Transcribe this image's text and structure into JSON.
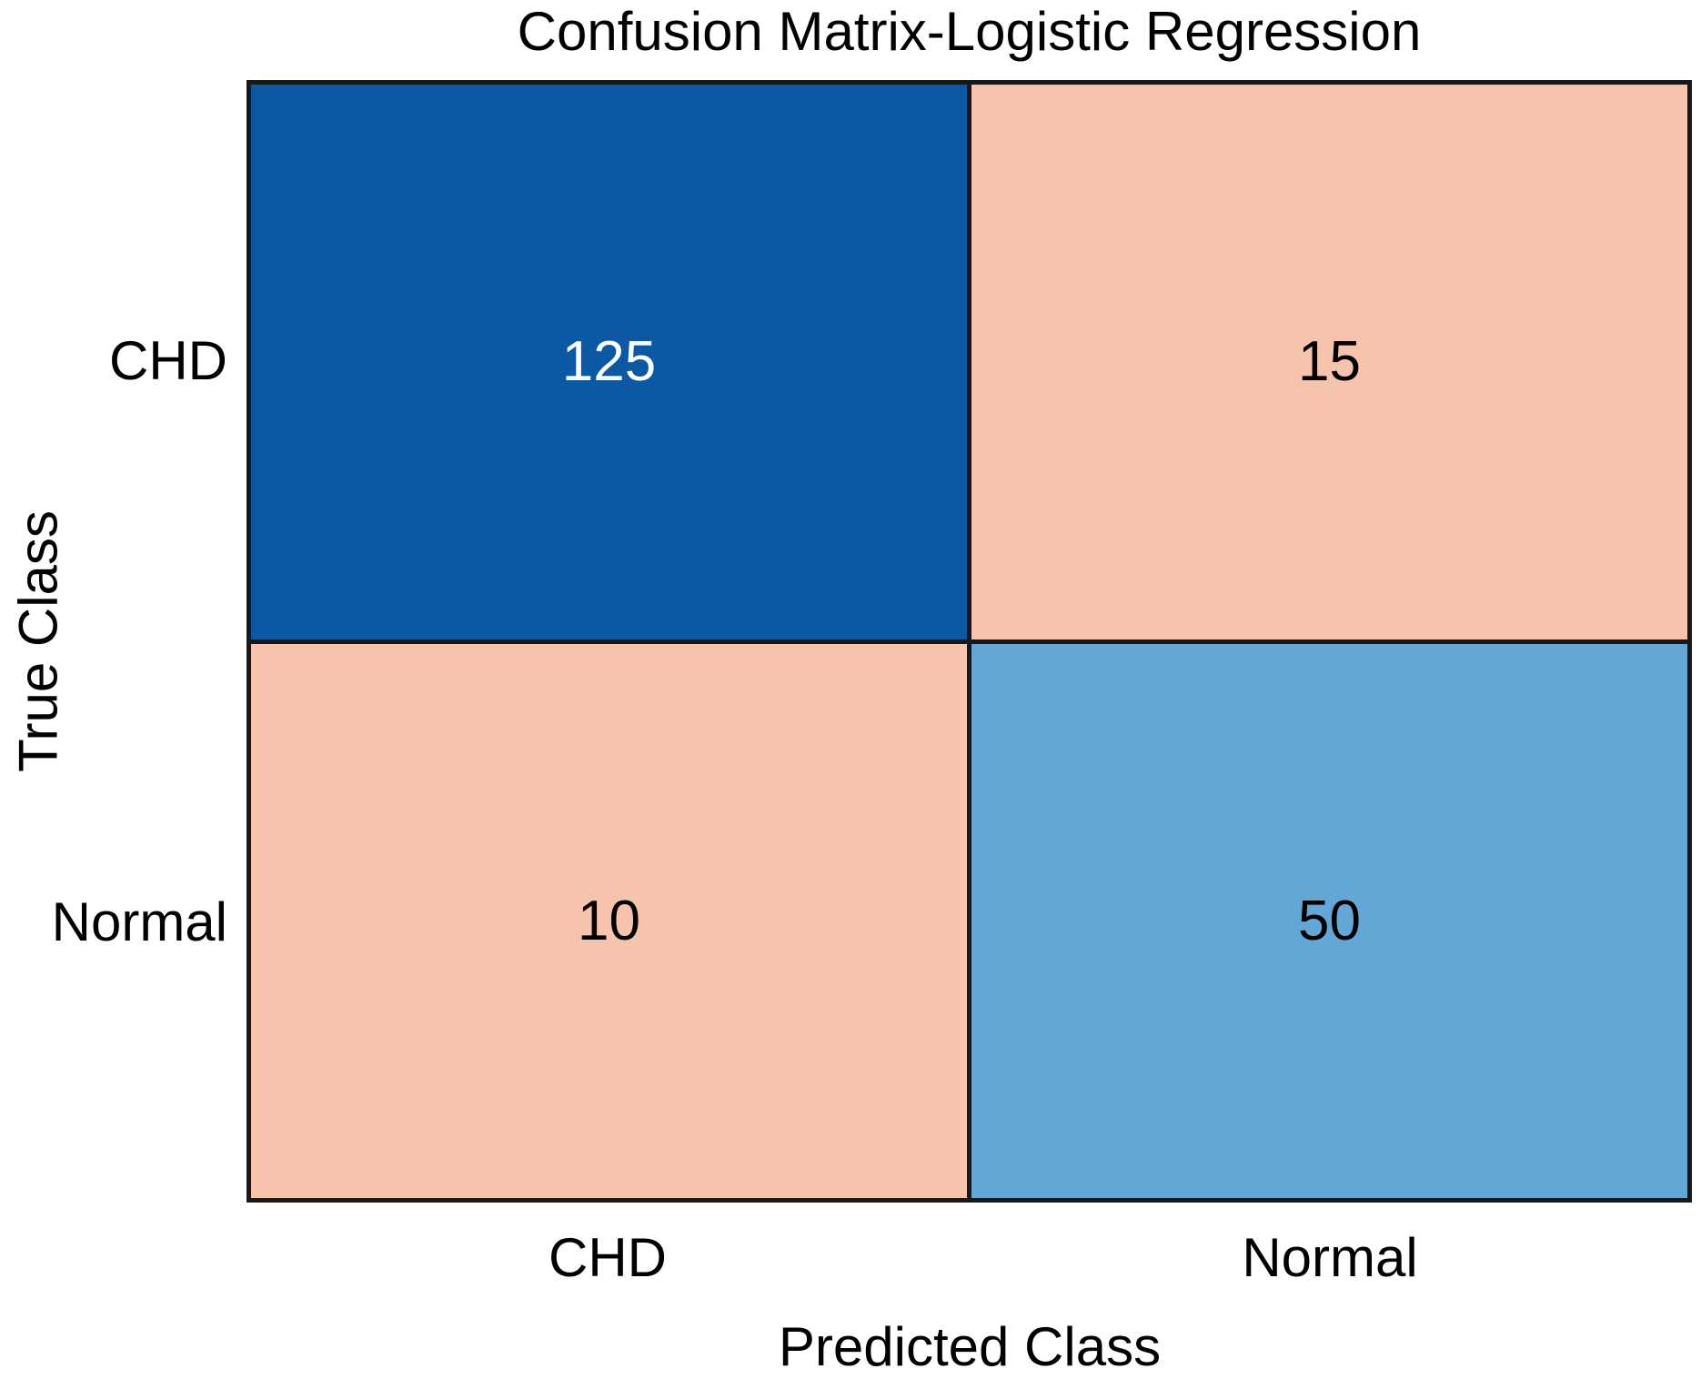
{
  "chart_data": {
    "type": "heatmap",
    "subtype": "confusion-matrix",
    "title": "Confusion Matrix-Logistic Regression",
    "xlabel": "Predicted Class",
    "ylabel": "True Class",
    "x_categories": [
      "CHD",
      "Normal"
    ],
    "y_categories": [
      "CHD",
      "Normal"
    ],
    "matrix": [
      [
        125,
        15
      ],
      [
        10,
        50
      ]
    ],
    "cell_colors": [
      [
        "#0B59A5",
        "#F6C4AD"
      ],
      [
        "#F6C4AD",
        "#63A7D6"
      ]
    ],
    "cell_text_colors": [
      [
        "#FFFFFF",
        "#000000"
      ],
      [
        "#000000",
        "#000000"
      ]
    ],
    "grid_line_color": "#181818",
    "legend": "none",
    "grid": "off"
  }
}
